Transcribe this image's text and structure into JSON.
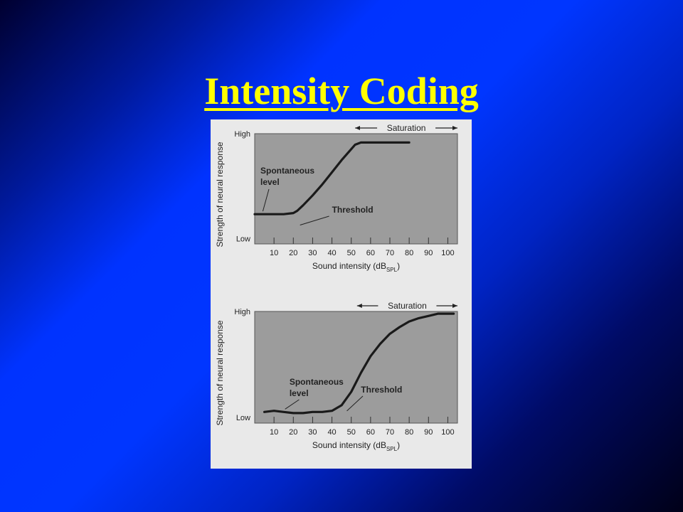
{
  "slide": {
    "title": "Intensity Coding",
    "title_color": "#ffff00",
    "background_colors": [
      "#000030",
      "#0033ff",
      "#000018"
    ]
  },
  "chart_data": [
    {
      "type": "line",
      "xlabel": "Sound intensity (dBSPL)",
      "ylabel": "Strength of neural response",
      "xlim": [
        0,
        105
      ],
      "ylim": [
        0,
        1
      ],
      "xticks": [
        10,
        20,
        30,
        40,
        50,
        60,
        70,
        80,
        90,
        100
      ],
      "yticks": [
        {
          "value": 0.05,
          "label": "Low"
        },
        {
          "value": 1,
          "label": "High"
        }
      ],
      "grid": false,
      "series": [
        {
          "x": [
            0,
            5,
            10,
            15,
            20,
            22,
            25,
            30,
            35,
            40,
            45,
            50,
            52,
            55,
            60,
            65,
            70,
            75,
            80
          ],
          "y": [
            0.27,
            0.27,
            0.27,
            0.27,
            0.28,
            0.3,
            0.35,
            0.44,
            0.54,
            0.65,
            0.76,
            0.86,
            0.9,
            0.92,
            0.92,
            0.92,
            0.92,
            0.92,
            0.92
          ]
        }
      ],
      "annotations": [
        {
          "text": "Saturation",
          "x_range": [
            52,
            105
          ],
          "arrows": "both"
        },
        {
          "text": "Spontaneous",
          "point": [
            2,
            0.27
          ]
        },
        {
          "text": "level",
          "point": [
            2,
            0.27
          ]
        },
        {
          "text": "Threshold",
          "point": [
            22,
            0.3
          ]
        }
      ]
    },
    {
      "type": "line",
      "xlabel": "Sound intensity (dBSPL)",
      "ylabel": "Strength of neural response",
      "xlim": [
        0,
        105
      ],
      "ylim": [
        0,
        1
      ],
      "xticks": [
        10,
        20,
        30,
        40,
        50,
        60,
        70,
        80,
        90,
        100
      ],
      "yticks": [
        {
          "value": 0.05,
          "label": "Low"
        },
        {
          "value": 1,
          "label": "High"
        }
      ],
      "grid": false,
      "series": [
        {
          "x": [
            5,
            10,
            15,
            20,
            25,
            30,
            35,
            40,
            45,
            50,
            55,
            60,
            65,
            70,
            75,
            80,
            85,
            90,
            95,
            100,
            103
          ],
          "y": [
            0.1,
            0.11,
            0.1,
            0.09,
            0.09,
            0.1,
            0.1,
            0.11,
            0.16,
            0.28,
            0.45,
            0.6,
            0.71,
            0.8,
            0.86,
            0.91,
            0.94,
            0.96,
            0.98,
            0.98,
            0.98
          ]
        }
      ],
      "annotations": [
        {
          "text": "Saturation",
          "x_range": [
            53,
            105
          ],
          "arrows": "both"
        },
        {
          "text": "Spontaneous",
          "point": [
            15,
            0.1
          ]
        },
        {
          "text": "level",
          "point": [
            15,
            0.1
          ]
        },
        {
          "text": "Threshold",
          "point": [
            47,
            0.16
          ]
        }
      ]
    }
  ]
}
